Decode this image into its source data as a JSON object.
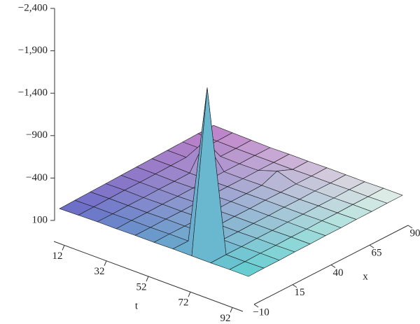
{
  "chart_data": {
    "type": "surface3d",
    "t_label": "t",
    "x_label": "x",
    "t": [
      7,
      16,
      25,
      34,
      43,
      52,
      61,
      70,
      79,
      88,
      97
    ],
    "x": [
      -10,
      0,
      10,
      20,
      30,
      40,
      50,
      60,
      70,
      80,
      90
    ],
    "z": [
      [
        -40,
        -45,
        -50,
        -55,
        -60,
        -65,
        -70,
        -75,
        -80,
        -85,
        -90
      ],
      [
        -45,
        -50,
        -55,
        -60,
        -60,
        -65,
        -70,
        -75,
        -80,
        -80,
        -85
      ],
      [
        -50,
        -50,
        -55,
        -55,
        -60,
        -60,
        -65,
        -350,
        -75,
        -75,
        -80
      ],
      [
        -50,
        -55,
        -55,
        -60,
        -60,
        -65,
        -65,
        -70,
        -70,
        -75,
        -75
      ],
      [
        -55,
        -55,
        -60,
        -60,
        -65,
        -65,
        -70,
        -70,
        -75,
        -75,
        -80
      ],
      [
        -55,
        -60,
        -60,
        -65,
        -65,
        -70,
        -70,
        -75,
        -150,
        -75,
        -80
      ],
      [
        -60,
        -60,
        -65,
        -65,
        -70,
        -70,
        -75,
        -75,
        -80,
        -80,
        -85
      ],
      [
        -60,
        -1950,
        -65,
        -65,
        -70,
        -70,
        -75,
        -75,
        -80,
        -80,
        -85
      ],
      [
        -60,
        -65,
        -65,
        -70,
        -70,
        -75,
        -75,
        -80,
        -80,
        -85,
        -85
      ],
      [
        -65,
        -65,
        -70,
        -70,
        -75,
        -75,
        -80,
        -80,
        -85,
        -85,
        -90
      ],
      [
        -65,
        -70,
        -70,
        -75,
        -75,
        -80,
        -80,
        -85,
        -85,
        -90,
        -90
      ]
    ],
    "tlim": [
      7,
      97
    ],
    "xlim": [
      -10,
      90
    ],
    "zlim": [
      100,
      -2400
    ],
    "tticks": [
      12,
      32,
      52,
      72,
      92
    ],
    "xticks": [
      {
        "value": -10,
        "label": "−10"
      },
      15,
      40,
      65,
      90
    ],
    "zticks": [
      {
        "value": -2400,
        "label": "−2,400"
      },
      {
        "value": -1900,
        "label": "−1,900"
      },
      {
        "value": -1400,
        "label": "−1,400"
      },
      {
        "value": -900,
        "label": "−900"
      },
      {
        "value": -400,
        "label": "−400"
      },
      100
    ]
  }
}
